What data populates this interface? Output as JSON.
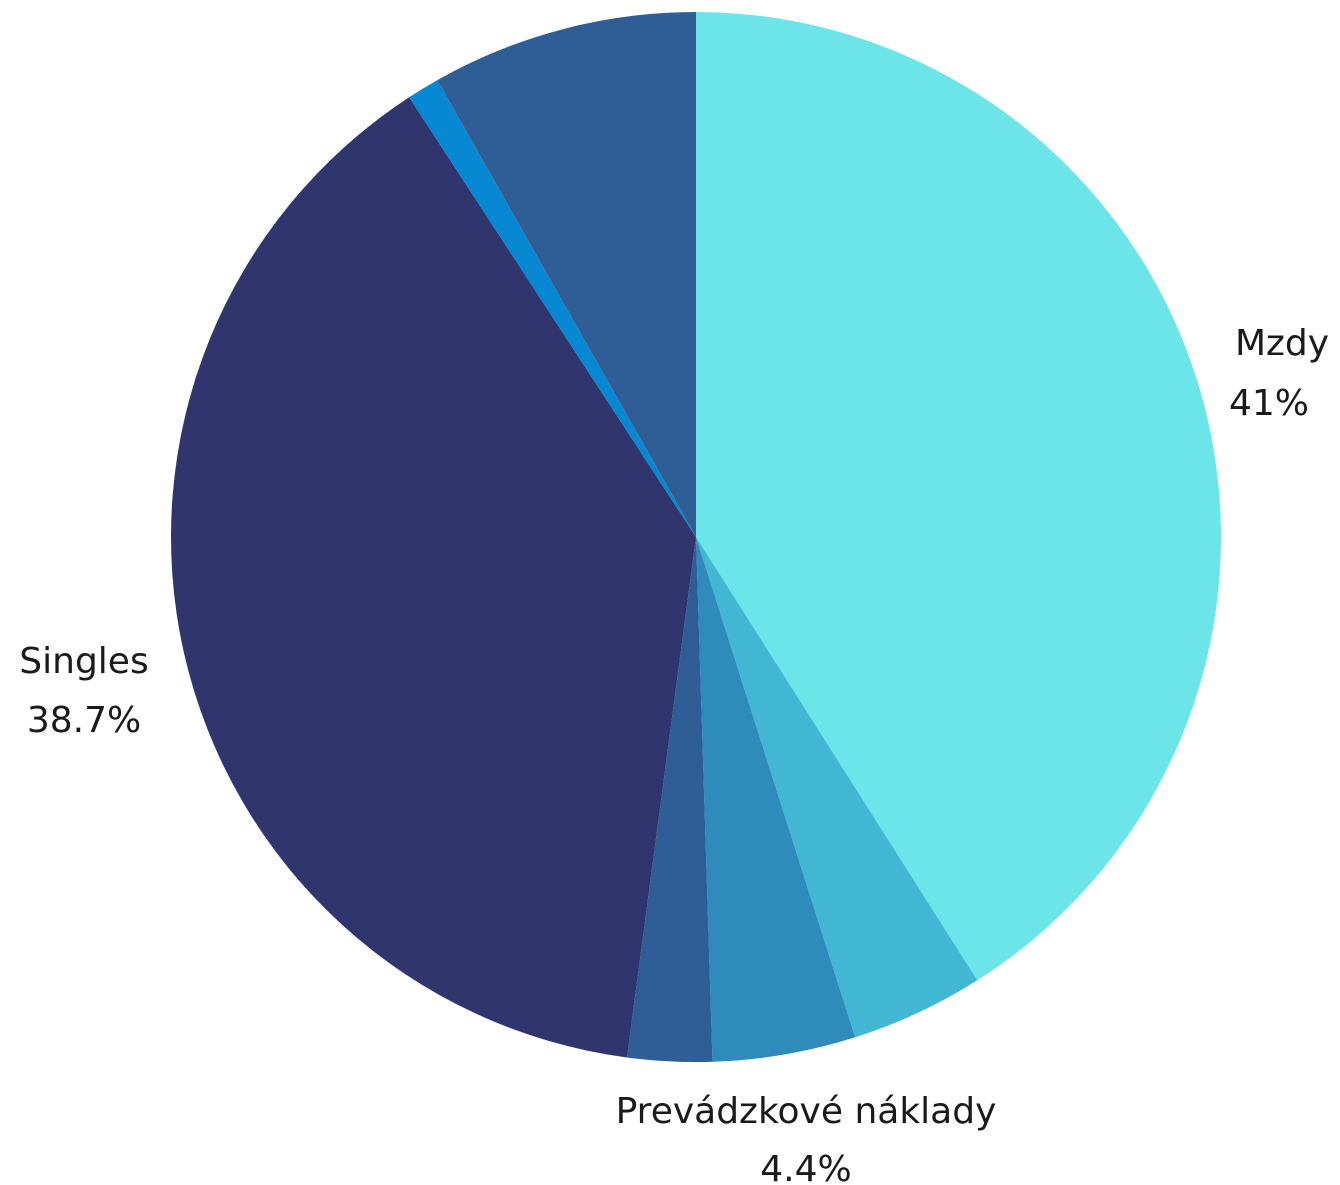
{
  "chart_data": {
    "type": "pie",
    "title": "",
    "start": "top",
    "direction": "clockwise",
    "slices": [
      {
        "label": "Mzdy",
        "value": 41.0,
        "value_label": "41%",
        "color": "#6ce5e8",
        "show_label": true
      },
      {
        "label": "",
        "value": 4.1,
        "value_label": "",
        "color": "#41b7d4",
        "show_label": false
      },
      {
        "label": "Prevádzkové náklady",
        "value": 4.4,
        "value_label": "4.4%",
        "color": "#2e8bbb",
        "show_label": true
      },
      {
        "label": "",
        "value": 2.6,
        "value_label": "",
        "color": "#2f5e97",
        "show_label": false
      },
      {
        "label": "Singles",
        "value": 38.7,
        "value_label": "38.7%",
        "color": "#31356e",
        "show_label": true
      },
      {
        "label": "",
        "value": 1.0,
        "value_label": "",
        "color": "#0788d3",
        "show_label": false
      },
      {
        "label": "",
        "value": 8.2,
        "value_label": "",
        "color": "#2f5e97",
        "show_label": false
      }
    ]
  }
}
